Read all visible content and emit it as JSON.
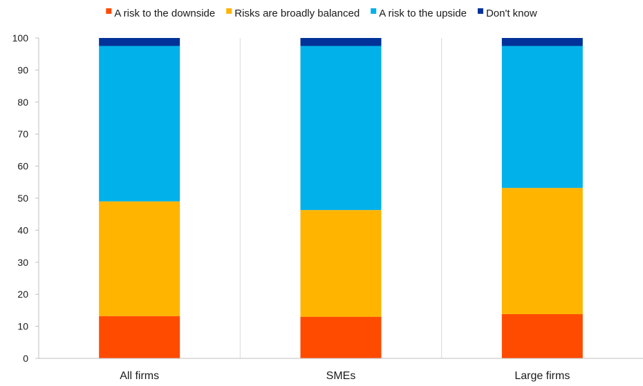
{
  "chart_data": {
    "type": "bar",
    "stacked": true,
    "categories": [
      "All firms",
      "SMEs",
      "Large firms"
    ],
    "series": [
      {
        "name": "A risk to the downside",
        "color": "#FF4B00",
        "values": [
          13.2,
          13.0,
          13.8
        ]
      },
      {
        "name": "Risks are broadly balanced",
        "color": "#FFB400",
        "values": [
          35.8,
          33.3,
          39.4
        ]
      },
      {
        "name": "A risk to the upside",
        "color": "#00B1EA",
        "values": [
          48.5,
          51.2,
          44.3
        ]
      },
      {
        "name": "Don't know",
        "color": "#003299",
        "values": [
          2.5,
          2.5,
          2.5
        ]
      }
    ],
    "ylim": [
      0,
      100
    ],
    "yticks": [
      0,
      10,
      20,
      30,
      40,
      50,
      60,
      70,
      80,
      90,
      100
    ],
    "grid": "vertical separators between categories",
    "legend_position": "top"
  }
}
